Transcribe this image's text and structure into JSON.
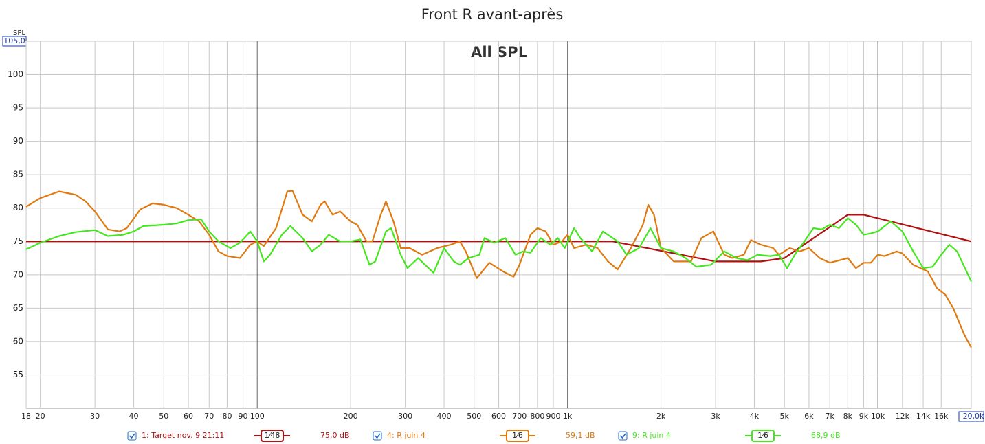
{
  "chart_data": {
    "type": "line",
    "title": "Front R avant-après",
    "annotation": "All SPL",
    "ylabel": "SPL",
    "xscale": "log",
    "grid": true,
    "xlim": [
      18,
      20000
    ],
    "ylim": [
      50,
      105
    ],
    "yticks": [
      55,
      60,
      65,
      70,
      75,
      80,
      85,
      90,
      95,
      100,
      {
        "value": 105,
        "label": "105,0"
      }
    ],
    "xticks": [
      18,
      20,
      30,
      40,
      50,
      60,
      70,
      80,
      90,
      100,
      200,
      300,
      400,
      500,
      600,
      700,
      800,
      900,
      {
        "value": 1000,
        "label": "1k"
      },
      {
        "value": 2000,
        "label": "2k"
      },
      {
        "value": 3000,
        "label": "3k"
      },
      {
        "value": 4000,
        "label": "4k"
      },
      {
        "value": 5000,
        "label": "5k"
      },
      {
        "value": 6000,
        "label": "6k"
      },
      {
        "value": 7000,
        "label": "7k"
      },
      {
        "value": 8000,
        "label": "8k"
      },
      {
        "value": 9000,
        "label": "9k"
      },
      {
        "value": 10000,
        "label": "10k"
      },
      {
        "value": 12000,
        "label": "12k"
      },
      {
        "value": 14000,
        "label": "14k"
      },
      {
        "value": 16000,
        "label": "16k"
      },
      {
        "value": 20000,
        "label": "20,0k"
      }
    ],
    "series": [
      {
        "name": "1: Target nov. 9 21:11",
        "smoothing": "1⁄48",
        "level": "75,0 dB",
        "color": "#b01010",
        "x": [
          18,
          1400,
          3000,
          4200,
          5000,
          8000,
          9000,
          20000
        ],
        "values": [
          75,
          75,
          72,
          72,
          72.5,
          79,
          79,
          75
        ]
      },
      {
        "name": "4: R juin 4",
        "smoothing": "1⁄6",
        "level": "59,1 dB",
        "color": "#e07a10",
        "x": [
          18,
          20,
          23,
          26,
          28,
          30,
          33,
          36,
          38,
          42,
          46,
          50,
          55,
          60,
          65,
          70,
          75,
          80,
          88,
          95,
          100,
          105,
          115,
          125,
          130,
          140,
          150,
          160,
          165,
          175,
          185,
          200,
          210,
          225,
          235,
          250,
          260,
          275,
          290,
          310,
          340,
          380,
          420,
          450,
          470,
          510,
          560,
          620,
          670,
          700,
          760,
          800,
          850,
          900,
          960,
          1000,
          1050,
          1150,
          1250,
          1350,
          1450,
          1600,
          1750,
          1820,
          1900,
          2000,
          2200,
          2500,
          2700,
          2950,
          3200,
          3400,
          3700,
          3900,
          4200,
          4600,
          4800,
          5200,
          5600,
          6000,
          6500,
          7000,
          7700,
          8000,
          8500,
          9000,
          9500,
          10000,
          10500,
          11500,
          12000,
          13000,
          14500,
          15500,
          16500,
          17500,
          19000,
          20000
        ],
        "values": [
          80.2,
          81.5,
          82.5,
          82,
          81,
          79.5,
          76.8,
          76.5,
          77,
          79.8,
          80.7,
          80.5,
          80,
          79,
          78,
          76,
          73.5,
          72.8,
          72.5,
          74.5,
          75,
          74.3,
          77,
          82.5,
          82.6,
          79,
          78,
          80.5,
          81,
          79,
          79.5,
          78,
          77.5,
          75,
          75,
          79,
          81,
          78,
          74,
          74,
          73,
          74,
          74.5,
          75,
          73.5,
          69.5,
          71.8,
          70.5,
          69.7,
          71.5,
          76,
          77,
          76.5,
          74.5,
          75,
          76,
          74,
          74.5,
          74,
          72,
          70.8,
          74,
          77.5,
          80.5,
          79,
          74,
          72,
          72,
          75.5,
          76.5,
          73,
          72.5,
          73,
          75.2,
          74.5,
          74,
          73,
          74,
          73.5,
          74,
          72.5,
          71.8,
          72.3,
          72.5,
          71,
          71.8,
          71.8,
          73,
          72.8,
          73.5,
          73.2,
          71.5,
          70.5,
          68,
          67,
          65,
          61,
          59.1
        ]
      },
      {
        "name": "9: R juin 4",
        "smoothing": "1⁄6",
        "level": "68,9 dB",
        "color": "#44e61e",
        "x": [
          18,
          20,
          23,
          26,
          30,
          33,
          37,
          40,
          43,
          50,
          55,
          60,
          66,
          70,
          75,
          82,
          88,
          95,
          100,
          105,
          110,
          120,
          128,
          140,
          150,
          160,
          170,
          185,
          200,
          215,
          230,
          240,
          260,
          270,
          290,
          305,
          330,
          370,
          400,
          430,
          450,
          480,
          520,
          540,
          580,
          630,
          680,
          720,
          760,
          820,
          880,
          930,
          980,
          1050,
          1100,
          1200,
          1300,
          1450,
          1550,
          1700,
          1850,
          2000,
          2200,
          2400,
          2600,
          2900,
          3200,
          3500,
          3800,
          4100,
          4500,
          4800,
          5100,
          5400,
          5800,
          6200,
          6600,
          7000,
          7500,
          8000,
          8500,
          9000,
          9500,
          10000,
          11000,
          12000,
          13000,
          14000,
          15000,
          16000,
          17000,
          18000,
          20000
        ],
        "values": [
          73.8,
          74.8,
          75.8,
          76.4,
          76.7,
          75.8,
          76,
          76.5,
          77.3,
          77.5,
          77.7,
          78.2,
          78.3,
          76.5,
          75,
          74,
          74.8,
          76.5,
          75,
          72,
          73,
          76,
          77.3,
          75.5,
          73.5,
          74.5,
          76,
          75,
          75,
          75.3,
          71.5,
          72,
          76.5,
          77,
          73,
          71,
          72.5,
          70.3,
          74,
          72,
          71.5,
          72.5,
          73,
          75.5,
          74.8,
          75.5,
          73,
          73.5,
          73.3,
          75.5,
          74.5,
          75.5,
          74,
          77,
          75.5,
          73.5,
          76.5,
          75,
          73,
          74,
          77,
          74,
          73.5,
          72.5,
          71.2,
          71.5,
          73.5,
          72.5,
          72.2,
          73,
          72.8,
          73,
          71,
          73,
          75,
          77,
          76.8,
          77.5,
          77,
          78.5,
          77.5,
          76,
          76.2,
          76.5,
          78,
          76.5,
          73.5,
          71,
          71.2,
          73,
          74.5,
          73.5,
          69
        ]
      }
    ]
  }
}
